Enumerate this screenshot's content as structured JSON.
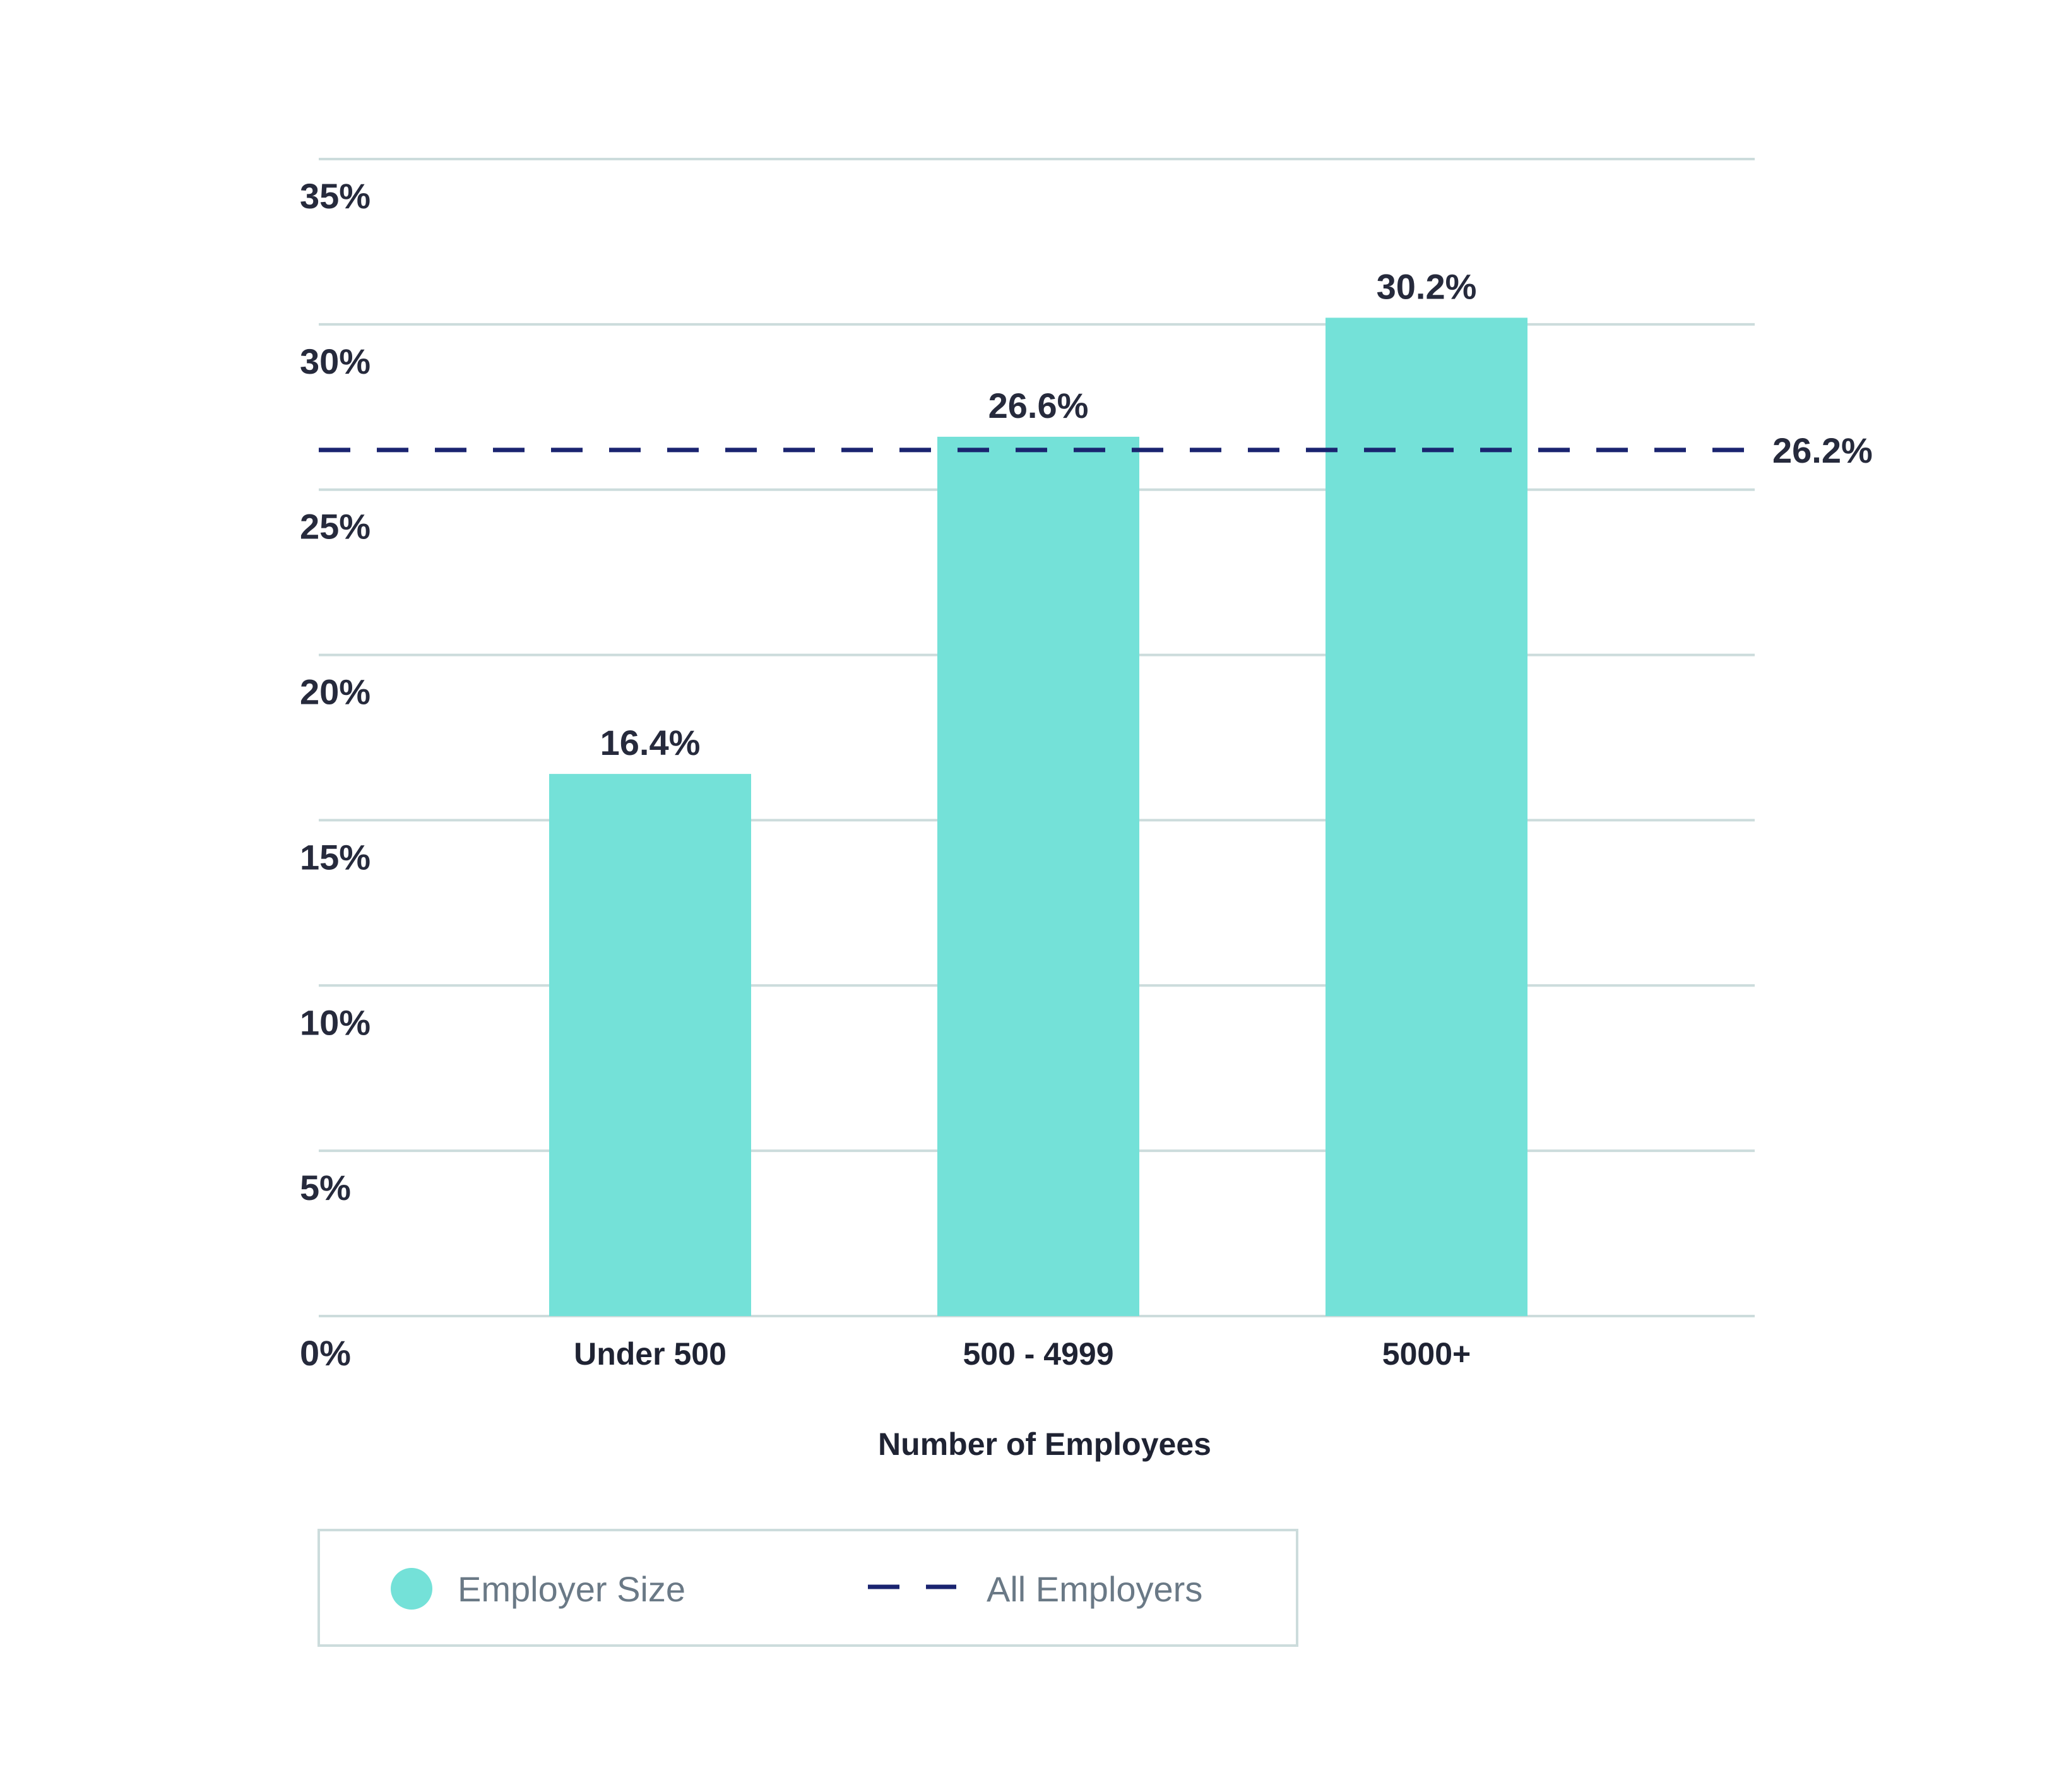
{
  "colors": {
    "bar": "#74e1d8",
    "reference_line": "#1a2470",
    "gridline": "#ccdcdc",
    "text": "#262a3c",
    "legend_text": "#6a7986",
    "legend_border": "#ccdcdc"
  },
  "chart_data": {
    "type": "bar",
    "categories": [
      "Under 500",
      "500 - 4999",
      "5000+"
    ],
    "values": [
      16.4,
      26.6,
      30.2
    ],
    "value_labels": [
      "16.4%",
      "26.6%",
      "30.2%"
    ],
    "xlabel": "Number of Employees",
    "ylabel": "",
    "ylim": [
      0,
      35
    ],
    "y_ticks": [
      0,
      5,
      10,
      15,
      20,
      25,
      30,
      35
    ],
    "y_tick_labels": [
      "0%",
      "5%",
      "10%",
      "15%",
      "20%",
      "25%",
      "30%",
      "35%"
    ],
    "grid": true,
    "reference_line": {
      "value": 26.2,
      "label": "26.2%",
      "style": "dashed"
    },
    "legend": {
      "placement": "bottom-left",
      "items": [
        {
          "label": "Employer Size",
          "marker": "circle"
        },
        {
          "label": "All Employers",
          "marker": "dashed-line"
        }
      ]
    }
  }
}
